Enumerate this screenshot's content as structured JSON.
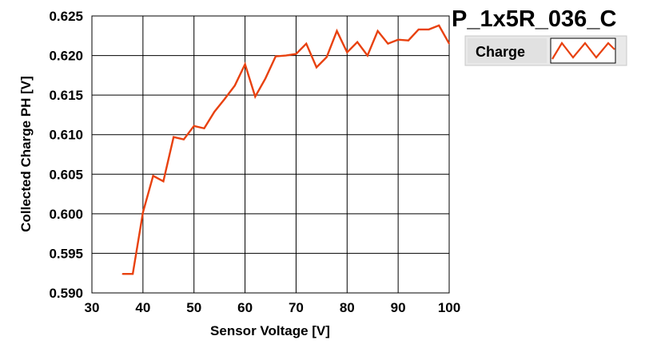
{
  "chart_data": {
    "type": "line",
    "title": "P_1x5R_036_C",
    "xlabel": "Sensor Voltage [V]",
    "ylabel": "Collected Charge PH [V]",
    "xlim": [
      30,
      100
    ],
    "ylim": [
      0.59,
      0.625
    ],
    "xticks": [
      30,
      40,
      50,
      60,
      70,
      80,
      90,
      100
    ],
    "yticks": [
      0.59,
      0.595,
      0.6,
      0.605,
      0.61,
      0.615,
      0.62,
      0.625
    ],
    "xtick_labels": [
      "30",
      "40",
      "50",
      "60",
      "70",
      "80",
      "90",
      "100"
    ],
    "ytick_labels": [
      "0.590",
      "0.595",
      "0.600",
      "0.605",
      "0.610",
      "0.615",
      "0.620",
      "0.625"
    ],
    "grid": true,
    "legend_position": "top-right",
    "series": [
      {
        "name": "Charge",
        "color": "#e8410f",
        "x": [
          36,
          38,
          40,
          42,
          44,
          46,
          48,
          50,
          52,
          54,
          56,
          58,
          60,
          62,
          64,
          66,
          68,
          70,
          72,
          74,
          76,
          78,
          80,
          82,
          84,
          86,
          88,
          90,
          92,
          94,
          96,
          98,
          100
        ],
        "y": [
          0.5924,
          0.5924,
          0.6002,
          0.6048,
          0.6041,
          0.6097,
          0.6094,
          0.6111,
          0.6108,
          0.6129,
          0.6145,
          0.6162,
          0.6189,
          0.6148,
          0.6171,
          0.6199,
          0.62,
          0.6202,
          0.6215,
          0.6185,
          0.6198,
          0.6231,
          0.6204,
          0.6217,
          0.62,
          0.6231,
          0.6215,
          0.622,
          0.6219,
          0.6233,
          0.6233,
          0.6238,
          0.6215
        ]
      }
    ]
  }
}
